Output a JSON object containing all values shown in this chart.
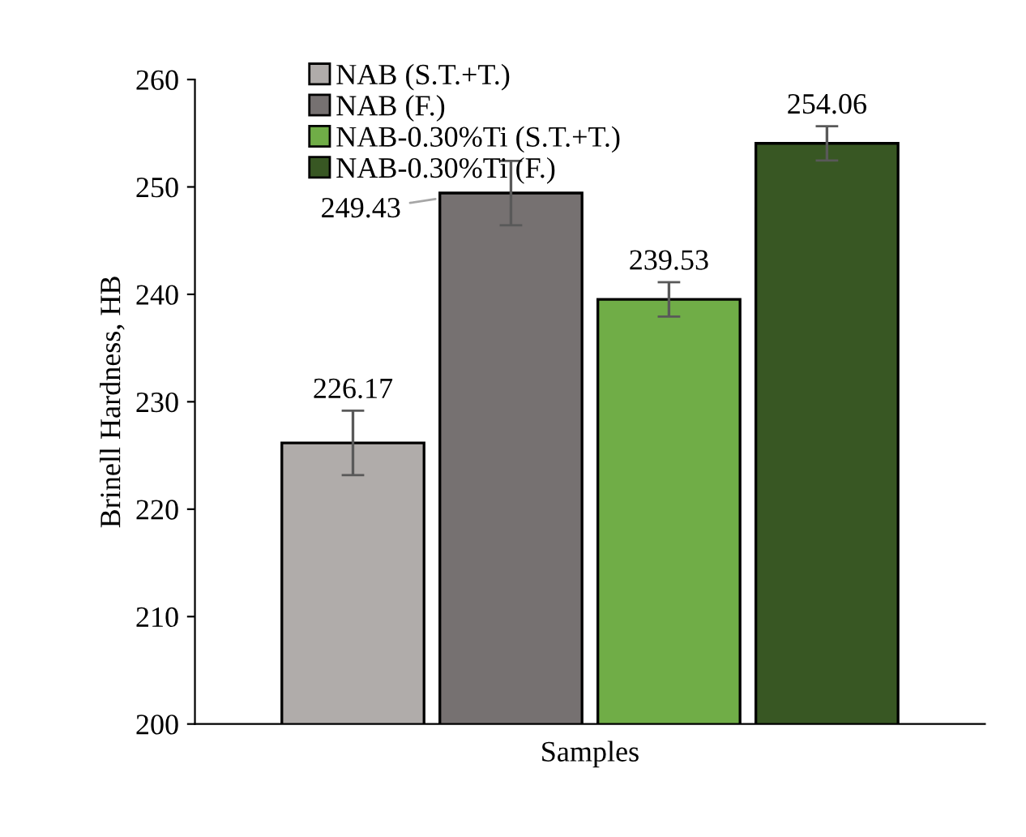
{
  "chart_data": {
    "type": "bar",
    "xlabel": "Samples",
    "ylabel": "Brinell Hardness, HB",
    "categories": [
      null
    ],
    "series": [
      {
        "name": "NAB (S.T.+T.)",
        "color": "#b0acaa",
        "values": [
          226.17
        ],
        "errors": [
          3.0
        ]
      },
      {
        "name": "NAB (F.)",
        "color": "#767171",
        "values": [
          249.43
        ],
        "errors": [
          3.0
        ]
      },
      {
        "name": "NAB-0.30%Ti (S.T.+T.)",
        "color": "#70ad47",
        "values": [
          239.53
        ],
        "errors": [
          1.6
        ]
      },
      {
        "name": "NAB-0.30%Ti (F.)",
        "color": "#385723",
        "values": [
          254.06
        ],
        "errors": [
          1.6
        ]
      }
    ],
    "ylim": [
      200,
      260
    ],
    "yticks": [
      200,
      210,
      220,
      230,
      240,
      250,
      260
    ],
    "data_labels": true,
    "legend": "top left",
    "grid": false
  }
}
